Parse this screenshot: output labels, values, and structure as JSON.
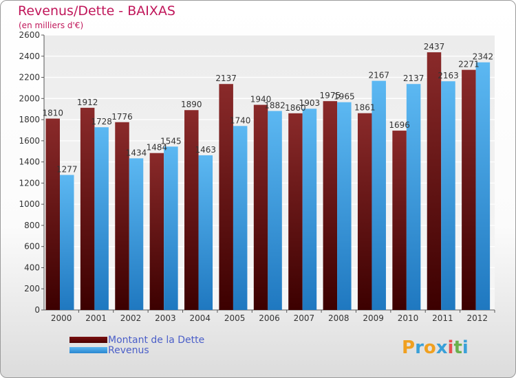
{
  "header": {
    "title": "Revenus/Dette - BAIXAS",
    "subtitle": "(en milliers d'€)"
  },
  "legend": {
    "items": [
      {
        "label": "Montant de la Dette",
        "color": "#7a1a1a"
      },
      {
        "label": "Revenus",
        "color": "#3a9ae0"
      }
    ]
  },
  "logo": {
    "letters": [
      "P",
      "r",
      "o",
      "x",
      "i",
      "t",
      "i"
    ],
    "colors": [
      "#f0a020",
      "#3aa0d8",
      "#f0a020",
      "#3aa0d8",
      "#e85050",
      "#6ab04c",
      "#3aa0d8"
    ]
  },
  "chart_data": {
    "type": "bar",
    "categories": [
      "2000",
      "2001",
      "2002",
      "2003",
      "2004",
      "2005",
      "2006",
      "2007",
      "2008",
      "2009",
      "2010",
      "2011",
      "2012"
    ],
    "series": [
      {
        "name": "Montant de la Dette",
        "values": [
          1810,
          1912,
          1776,
          1484,
          1890,
          2137,
          1940,
          1860,
          1975,
          1861,
          1696,
          2437,
          2271
        ],
        "color": "#7a1a1a"
      },
      {
        "name": "Revenus",
        "values": [
          1277,
          1728,
          1434,
          1545,
          1463,
          1740,
          1882,
          1903,
          1965,
          2167,
          2137,
          2163,
          2342
        ],
        "color": "#3a9ae0"
      }
    ],
    "yticks": [
      0,
      200,
      400,
      600,
      800,
      1000,
      1200,
      1400,
      1600,
      1800,
      2000,
      2200,
      2400,
      2600
    ],
    "ylim": [
      0,
      2600
    ],
    "grid": true
  }
}
